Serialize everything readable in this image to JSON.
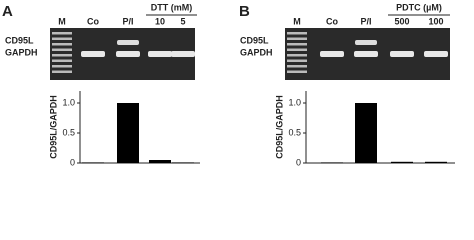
{
  "panels": [
    {
      "label": "A",
      "treatment": "DTT (mM)",
      "rows": [
        "CD95L",
        "GAPDH"
      ],
      "lanes": [
        "M",
        "Co",
        "P/I",
        "10",
        "5"
      ],
      "chart": {
        "type": "bar",
        "ylabel": "CD95L/GAPDH",
        "ylim": [
          0,
          1.2
        ],
        "yticks": [
          0,
          0.5,
          {
            "value": 1,
            "label": "1.0"
          }
        ],
        "values": [
          null,
          0.01,
          1.0,
          0.05,
          0.01
        ],
        "color": "#000000"
      }
    },
    {
      "label": "B",
      "treatment": "PDTC (µM)",
      "rows": [
        "CD95L",
        "GAPDH"
      ],
      "lanes": [
        "M",
        "Co",
        "P/I",
        "500",
        "100"
      ],
      "chart": {
        "type": "bar",
        "ylabel": "CD95L/GAPDH",
        "ylim": [
          0,
          1.2
        ],
        "yticks": [
          0,
          0.5,
          {
            "value": 1,
            "label": "1.0"
          }
        ],
        "values": [
          null,
          0.01,
          1.0,
          0.02,
          0.02
        ],
        "color": "#000000"
      }
    }
  ]
}
